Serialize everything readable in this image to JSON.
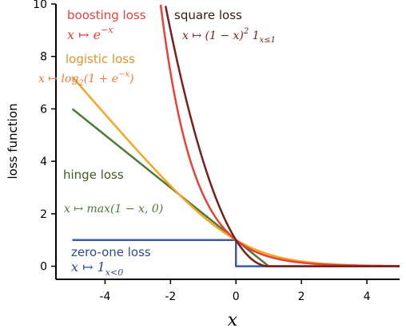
{
  "chart_data": {
    "type": "line",
    "xlabel": "x",
    "ylabel": "loss function",
    "xlim": [
      -5.5,
      5
    ],
    "ylim": [
      -0.5,
      10
    ],
    "xticks": [
      "-4",
      "-2",
      "0",
      "2",
      "4"
    ],
    "yticks": [
      "0",
      "2",
      "4",
      "6",
      "8",
      "10"
    ],
    "grid": false,
    "series": [
      {
        "name": "zero-one loss",
        "formula": "x ↦ 1_{x<0}",
        "color": "#3f5aa7",
        "x": [
          -5,
          -4,
          -3,
          -2,
          -1,
          0,
          0,
          1,
          2,
          3,
          4,
          5
        ],
        "y": [
          1,
          1,
          1,
          1,
          1,
          1,
          0,
          0,
          0,
          0,
          0,
          0
        ]
      },
      {
        "name": "hinge loss",
        "formula": "x ↦ max(1 − x, 0)",
        "color": "#4e7a35",
        "x": [
          -5,
          -4,
          -3,
          -2,
          -1,
          0,
          1,
          2,
          3,
          4,
          5
        ],
        "y": [
          6,
          5,
          4,
          3,
          2,
          1,
          0,
          0,
          0,
          0,
          0
        ]
      },
      {
        "name": "logistic loss",
        "formula": "x ↦ log₂(1 + e^{−x})",
        "color": "#f5a623",
        "x": [
          -5,
          -4,
          -3,
          -2,
          -1,
          0,
          1,
          2,
          3,
          4,
          5
        ],
        "y": [
          7.22,
          5.83,
          4.44,
          3.09,
          1.89,
          1.0,
          0.45,
          0.18,
          0.07,
          0.03,
          0.01
        ]
      },
      {
        "name": "boosting loss",
        "formula": "x ↦ e^{−x}",
        "color": "#e8413a",
        "x": [
          -2.3,
          -2,
          -1.5,
          -1,
          -0.5,
          0,
          0.5,
          1,
          2,
          3,
          4,
          5
        ],
        "y": [
          9.97,
          7.39,
          4.48,
          2.72,
          1.65,
          1.0,
          0.61,
          0.37,
          0.14,
          0.05,
          0.02,
          0.01
        ]
      },
      {
        "name": "square loss",
        "formula": "x ↦ (1 − x)² 1_{x≤1}",
        "color": "#7a1f1a",
        "x": [
          -2.15,
          -2,
          -1.5,
          -1,
          -0.5,
          0,
          0.5,
          1,
          2,
          3,
          4,
          5
        ],
        "y": [
          9.92,
          9.0,
          6.25,
          4.0,
          2.25,
          1.0,
          0.25,
          0,
          0,
          0,
          0,
          0
        ]
      }
    ],
    "annotations": [
      {
        "text": "boosting loss",
        "role": "name",
        "color": "#e8413a"
      },
      {
        "text": "x ↦ e",
        "role": "formula",
        "color": "#e8413a",
        "sup": "−x"
      },
      {
        "text": "square loss",
        "role": "name",
        "color": "#3b1a14"
      },
      {
        "text": "x ↦ (1 − x)",
        "role": "formula",
        "color": "#7a1f1a",
        "sup": "2",
        "sub": "x≤1",
        "tail": " 1"
      },
      {
        "text": "logistic loss",
        "role": "name",
        "color": "#e2912a"
      },
      {
        "text": "x ↦ log",
        "role": "formula",
        "color": "#f07a3a",
        "sub": "2",
        "tail": "(1 + e",
        "sup": "−x",
        "end": ")"
      },
      {
        "text": "hinge loss",
        "role": "name",
        "color": "#3e5a22"
      },
      {
        "text": "x ↦ max(1 − x, 0)",
        "role": "formula",
        "color": "#4e7a35"
      },
      {
        "text": "zero-one loss",
        "role": "name",
        "color": "#2f4a95"
      },
      {
        "text": "x ↦ 1",
        "role": "formula",
        "color": "#2f4a95",
        "sub": "x<0"
      }
    ]
  }
}
